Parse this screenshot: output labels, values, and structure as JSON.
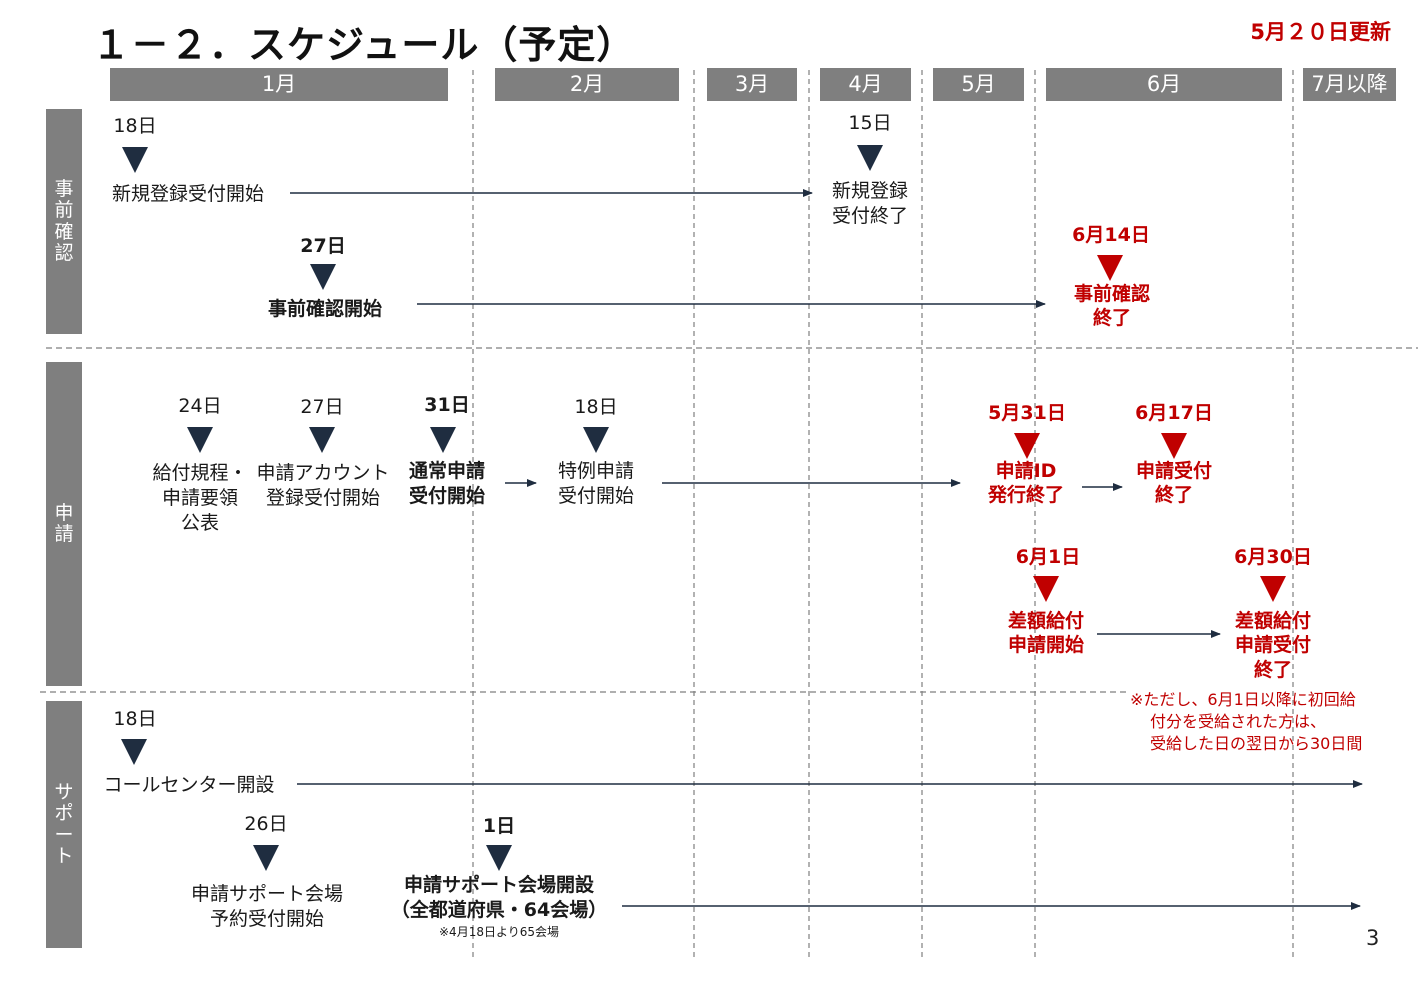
{
  "title": "１－２．スケジュール（予定）",
  "updated": "5月２０日更新",
  "page_number": "3",
  "months": [
    "1月",
    "2月",
    "3月",
    "4月",
    "5月",
    "6月",
    "7月以降"
  ],
  "lanes": [
    "事前確認",
    "申請",
    "サポート"
  ],
  "events": {
    "reg_start_day": "18日",
    "reg_start_label": "新規登録受付開始",
    "reg_end_day": "15日",
    "reg_end_label_1": "新規登録",
    "reg_end_label_2": "受付終了",
    "pre_start_day": "27日",
    "pre_start_label": "事前確認開始",
    "pre_end_day": "6月14日",
    "pre_end_label_1": "事前確認",
    "pre_end_label_2": "終了",
    "rules_day": "24日",
    "rules_label_1": "給付規程・",
    "rules_label_2": "申請要領",
    "rules_label_3": "公表",
    "acct_day": "27日",
    "acct_label_1": "申請アカウント",
    "acct_label_2": "登録受付開始",
    "normal_day": "31日",
    "normal_label_1": "通常申請",
    "normal_label_2": "受付開始",
    "special_day": "18日",
    "special_label_1": "特例申請",
    "special_label_2": "受付開始",
    "id_end_day": "5月31日",
    "id_end_label_1": "申請ID",
    "id_end_label_2": "発行終了",
    "app_end_day": "6月17日",
    "app_end_label_1": "申請受付",
    "app_end_label_2": "終了",
    "diff_start_day": "6月1日",
    "diff_start_label_1": "差額給付",
    "diff_start_label_2": "申請開始",
    "diff_end_day": "6月30日",
    "diff_end_label_1": "差額給付",
    "diff_end_label_2": "申請受付",
    "diff_end_label_3": "終了",
    "note_1": "※ただし、6月1日以降に初回給",
    "note_2": "付分を受給された方は、",
    "note_3": "受給した日の翌日から30日間",
    "call_day": "18日",
    "call_label": "コールセンター開設",
    "reserve_day": "26日",
    "reserve_label_1": "申請サポート会場",
    "reserve_label_2": "予約受付開始",
    "venue_day": "1日",
    "venue_label_1": "申請サポート会場開設",
    "venue_label_2": "（全都道府県・64会場）",
    "venue_note": "※4月18日より65会場"
  },
  "colors": {
    "header_gray": "#7f7f7f",
    "marker_navy": "#1f2d40",
    "accent_red": "#c00000"
  }
}
